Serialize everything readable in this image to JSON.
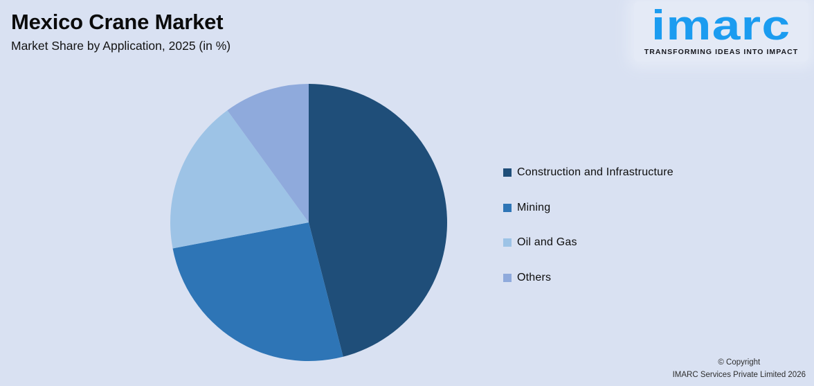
{
  "header": {
    "title": "Mexico Crane Market",
    "subtitle": "Market Share by Application, 2025 (in %)"
  },
  "logo": {
    "brand": "imarc",
    "tagline": "TRANSFORMING IDEAS INTO IMPACT",
    "brand_color": "#1b9cf0",
    "tagline_color": "#15161c"
  },
  "chart_data": {
    "type": "pie",
    "title": "Mexico Crane Market",
    "subtitle": "Market Share by Application, 2025 (in %)",
    "unit": "%",
    "start_angle_deg": 0,
    "direction": "clockwise",
    "values_labeled_on_chart": false,
    "legend_position": "right",
    "segments": [
      {
        "label": "Construction and Infrastructure",
        "value": 46,
        "color": "#1f4e79"
      },
      {
        "label": "Mining",
        "value": 26,
        "color": "#2e75b6"
      },
      {
        "label": "Oil and Gas",
        "value": 18,
        "color": "#9dc3e6"
      },
      {
        "label": "Others",
        "value": 10,
        "color": "#8faadc"
      }
    ]
  },
  "footer": {
    "copyright_line1": "© Copyright",
    "copyright_line2": "IMARC Services Private Limited 2026"
  },
  "colors": {
    "background": "#d9e1f2",
    "title_text": "#0b0b0b",
    "legend_text": "#0d0d0d",
    "copyright_text": "#2d2d2d"
  }
}
